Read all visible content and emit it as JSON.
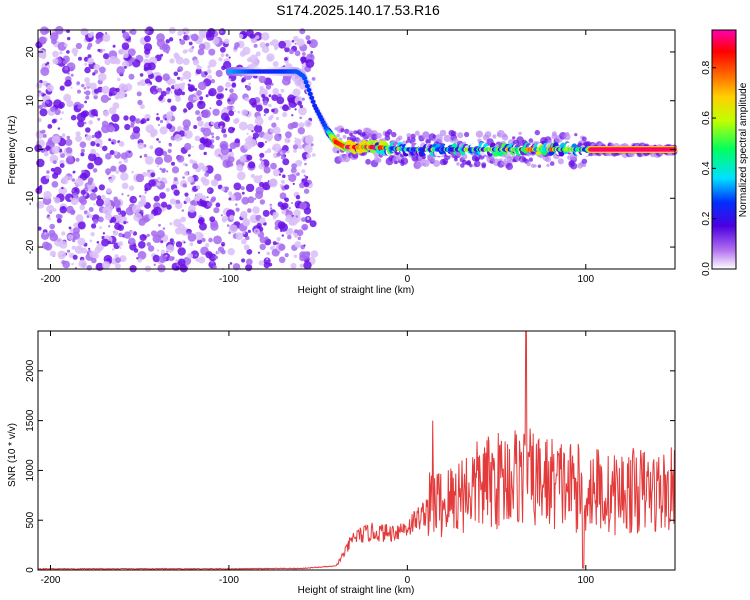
{
  "figure": {
    "title": "S174.2025.140.17.53.R16"
  },
  "chart_data": [
    {
      "type": "heatmap",
      "xlabel": "Height of straight line (km)",
      "ylabel": "Frequency (Hz)",
      "xlim": [
        -207,
        150
      ],
      "ylim": [
        -24.5,
        24.5
      ],
      "x_ticks": [
        -200,
        -100,
        0,
        100
      ],
      "x_tick_labels": [
        "-200",
        "-100",
        "0",
        "100"
      ],
      "y_ticks": [
        -20,
        -10,
        0,
        10,
        20
      ],
      "y_tick_labels": [
        "-20",
        "-10",
        "0",
        "10",
        "20"
      ],
      "noise_region_x": [
        -207,
        -52
      ],
      "ridge": {
        "x": [
          -100,
          -80,
          -62,
          -58,
          -52,
          -45,
          -40,
          -35,
          -20,
          0,
          20,
          40,
          60,
          80,
          100,
          103,
          150
        ],
        "y": [
          16,
          16,
          16,
          15,
          9,
          4,
          1.5,
          0.5,
          0.5,
          0,
          0,
          0,
          0,
          0,
          0,
          0,
          0
        ],
        "amplitude": [
          0.35,
          0.25,
          0.3,
          0.3,
          0.25,
          0.3,
          0.9,
          0.85,
          0.8,
          0.3,
          0.35,
          0.4,
          0.5,
          0.6,
          0.3,
          0.97,
          0.97
        ]
      },
      "colorbar": {
        "label": "Normalized spectral amplitude",
        "range": [
          0.0,
          0.95
        ],
        "ticks": [
          0.0,
          0.2,
          0.4,
          0.6,
          0.8
        ],
        "tick_labels": [
          "0.0",
          "0.2",
          "0.4",
          "0.6",
          "0.8"
        ]
      },
      "grid": false
    },
    {
      "type": "line",
      "xlabel": "Height of straight line (km)",
      "ylabel": "SNR (10 * v/v)",
      "xlim": [
        -207,
        150
      ],
      "ylim": [
        0,
        2400
      ],
      "x_ticks": [
        -200,
        -100,
        0,
        100
      ],
      "x_tick_labels": [
        "-200",
        "-100",
        "0",
        "100"
      ],
      "y_ticks": [
        0,
        500,
        1000,
        1500,
        2000
      ],
      "y_tick_labels": [
        "0",
        "500",
        "1000",
        "1500",
        "2000"
      ],
      "line_color": "#e33b3b",
      "series": [
        {
          "x": [
            -207,
            -150,
            -100,
            -60,
            -40,
            -35,
            -30,
            -20,
            -10,
            0,
            10,
            15,
            20,
            30,
            40,
            50,
            60,
            67,
            70,
            80,
            90,
            100,
            105,
            110,
            120,
            130,
            140,
            150
          ],
          "y": [
            12,
            12,
            12,
            15,
            40,
            180,
            330,
            380,
            370,
            430,
            580,
            700,
            650,
            780,
            850,
            900,
            950,
            950,
            900,
            880,
            850,
            800,
            850,
            750,
            780,
            800,
            780,
            800
          ]
        }
      ],
      "grid": false
    }
  ]
}
